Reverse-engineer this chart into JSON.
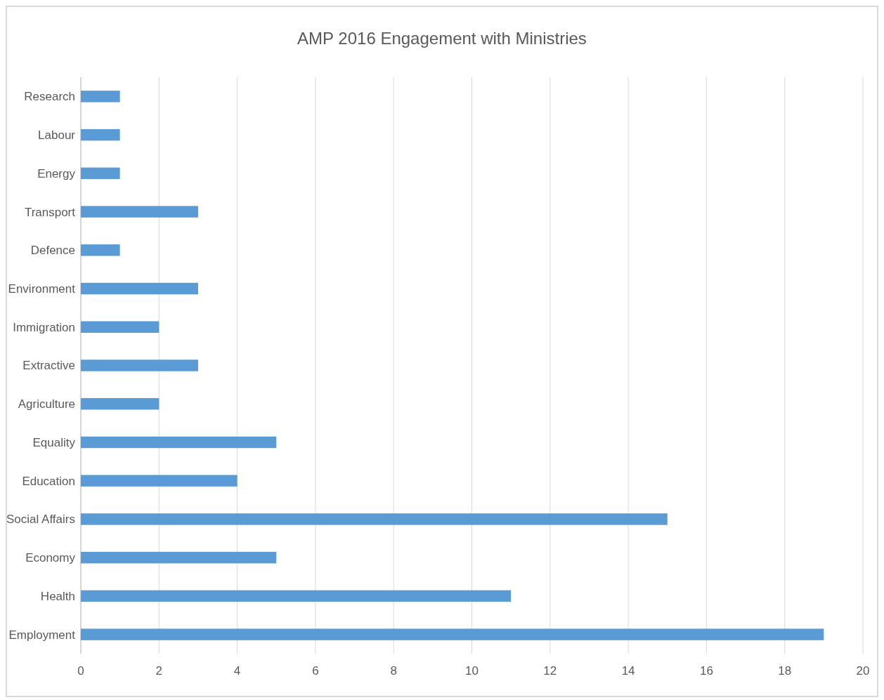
{
  "chart_data": {
    "type": "bar",
    "orientation": "horizontal",
    "title": "AMP 2016 Engagement with Ministries",
    "categories": [
      "Research",
      "Labour",
      "Energy",
      "Transport",
      "Defence",
      "Environment",
      "Immigration",
      "Extractive",
      "Agriculture",
      "Equality",
      "Education",
      "Social Affairs",
      "Economy",
      "Health",
      "Employment"
    ],
    "values": [
      1,
      1,
      1,
      3,
      1,
      3,
      2,
      3,
      2,
      5,
      4,
      15,
      5,
      11,
      19
    ],
    "color": "#5b9bd5",
    "xlim": [
      0,
      20
    ],
    "xticks": [
      0,
      2,
      4,
      6,
      8,
      10,
      12,
      14,
      16,
      18,
      20
    ],
    "grid": "x"
  }
}
